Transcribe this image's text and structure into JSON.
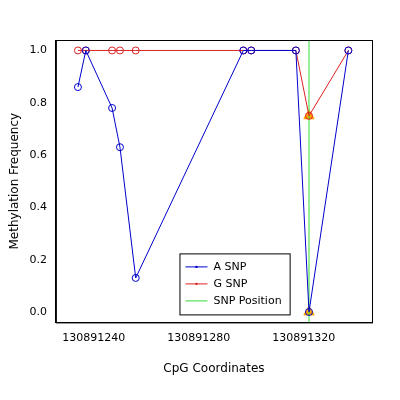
{
  "chart_data": {
    "type": "line",
    "x_label": "CpG Coordinates",
    "y_label": "Methylation Frequency",
    "x": [
      130891234,
      130891237,
      130891247,
      130891250,
      130891256,
      130891297,
      130891300,
      130891317,
      130891322,
      130891337
    ],
    "series": [
      {
        "name": "A SNP",
        "color": "#0000cc",
        "marker": "circle",
        "values": [
          0.86,
          1.0,
          0.78,
          0.63,
          0.13,
          1.0,
          1.0,
          1.0,
          0.0,
          1.0
        ]
      },
      {
        "name": "G SNP",
        "color": "#dd2222",
        "marker": "circle",
        "values": [
          1.0,
          1.0,
          1.0,
          1.0,
          1.0,
          1.0,
          1.0,
          1.0,
          0.75,
          1.0
        ]
      }
    ],
    "snp_position": {
      "name": "SNP Position",
      "color": "#33dd33",
      "x": 130891322,
      "marker": "triangle",
      "marker_color": "#ffa500",
      "values": [
        0.0,
        0.75
      ]
    },
    "xlim": [
      130891225.6,
      130891346
    ],
    "xticks": [
      130891240,
      130891280,
      130891320
    ],
    "ylim": [
      -0.04,
      1.04
    ],
    "yticks": [
      {
        "value": 0,
        "label": "0.0"
      },
      {
        "value": 0.2,
        "label": "0.2"
      },
      {
        "value": 0.4,
        "label": "0.4"
      },
      {
        "value": 0.6,
        "label": "0.6"
      },
      {
        "value": 0.8,
        "label": "0.8"
      },
      {
        "value": 1,
        "label": "1.0"
      }
    ],
    "grid": false,
    "legend": "bottom"
  }
}
